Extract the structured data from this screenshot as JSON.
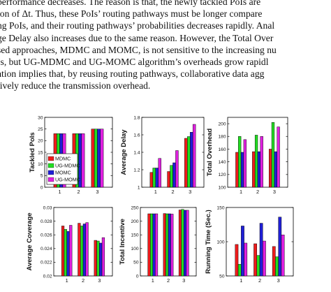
{
  "paragraph": {
    "lines": [
      "performance decreases. The reason is that, the newly tackled PoIs are",
      "ion of Δt. Thus, these PoIs’ routing pathways must be longer compare",
      "ng PoIs, and their routing pathways’ probabilities decreases rapidly. Anal",
      "ge Delay also increases due to the same reason. However, the Total Over",
      "sed approaches, MDMC and MOMC, is not sensitive to the increasing nu",
      "Is, but UG-MDMC and UG-MOMC algorithm’s overheads grow rapidl",
      "ation implies that, by reusing routing pathways, collaborative data agg",
      "tively reduce the transmission overhead."
    ]
  },
  "colors": {
    "MDMC": "#ee1c1c",
    "UG-MDMC": "#22dd22",
    "MOMC": "#1f1fd6",
    "UG-MOMC": "#e020e0"
  },
  "chart_data": [
    {
      "type": "bar",
      "ylabel": "Tackled PoIs",
      "categories": [
        "1",
        "2",
        "3"
      ],
      "ylim": [
        0,
        30
      ],
      "yticks": [
        "0",
        "5",
        "10",
        "15",
        "20",
        "25",
        "30"
      ],
      "legend": [
        "MDMC",
        "UG-MDMC",
        "MOMC",
        "UG-MOMC"
      ],
      "legend_position": "bottom-left",
      "series": [
        {
          "name": "MDMC",
          "values": [
            23,
            23,
            25
          ]
        },
        {
          "name": "UG-MDMC",
          "values": [
            23,
            23,
            25
          ]
        },
        {
          "name": "MOMC",
          "values": [
            23,
            23,
            25
          ]
        },
        {
          "name": "UG-MOMC",
          "values": [
            23,
            23,
            25
          ]
        }
      ]
    },
    {
      "type": "bar",
      "ylabel": "Average Delay",
      "categories": [
        "1",
        "2",
        "3"
      ],
      "ylim": [
        1,
        1.8
      ],
      "yticks": [
        "1",
        "1.2",
        "1.4",
        "1.6",
        "1.8"
      ],
      "series": [
        {
          "name": "MDMC",
          "values": [
            1.17,
            1.18,
            1.56
          ]
        },
        {
          "name": "UG-MDMC",
          "values": [
            1.22,
            1.25,
            1.58
          ]
        },
        {
          "name": "MOMC",
          "values": [
            1.22,
            1.28,
            1.63
          ]
        },
        {
          "name": "UG-MOMC",
          "values": [
            1.33,
            1.42,
            1.72
          ]
        }
      ]
    },
    {
      "type": "bar",
      "ylabel": "Total Overhead",
      "categories": [
        "1",
        "2",
        "3"
      ],
      "ylim": [
        100,
        210
      ],
      "yticks": [
        "100",
        "120",
        "140",
        "160",
        "180",
        "200"
      ],
      "series": [
        {
          "name": "MDMC",
          "values": [
            155,
            156,
            160
          ]
        },
        {
          "name": "UG-MDMC",
          "values": [
            180,
            182,
            202
          ]
        },
        {
          "name": "MOMC",
          "values": [
            155,
            156,
            156
          ]
        },
        {
          "name": "UG-MOMC",
          "values": [
            175,
            180,
            195
          ]
        }
      ]
    },
    {
      "type": "bar",
      "ylabel": "Average Coverage",
      "categories": [
        "1",
        "2",
        "3"
      ],
      "ylim": [
        0.02,
        0.03
      ],
      "yticks": [
        "0.02",
        "0.022",
        "0.024",
        "0.026",
        "0.028",
        "0.03"
      ],
      "series": [
        {
          "name": "MDMC",
          "values": [
            0.0273,
            0.0277,
            0.0252
          ]
        },
        {
          "name": "UG-MDMC",
          "values": [
            0.0268,
            0.0273,
            0.0251
          ]
        },
        {
          "name": "MOMC",
          "values": [
            0.0265,
            0.0276,
            0.0248
          ]
        },
        {
          "name": "UG-MOMC",
          "values": [
            0.0274,
            0.0278,
            0.0256
          ]
        }
      ]
    },
    {
      "type": "bar",
      "ylabel": "Total Incentive",
      "categories": [
        "1",
        "2",
        "3"
      ],
      "ylim": [
        0,
        250
      ],
      "yticks": [
        "0",
        "50",
        "100",
        "150",
        "200",
        "250"
      ],
      "series": [
        {
          "name": "MDMC",
          "values": [
            227,
            228,
            241
          ]
        },
        {
          "name": "UG-MDMC",
          "values": [
            227,
            227,
            243
          ]
        },
        {
          "name": "MOMC",
          "values": [
            227,
            227,
            240
          ]
        },
        {
          "name": "UG-MOMC",
          "values": [
            227,
            226,
            240
          ]
        }
      ]
    },
    {
      "type": "bar",
      "ylabel": "Running Time (Sec.)",
      "categories": [
        "1",
        "2",
        "3"
      ],
      "ylim": [
        50,
        150
      ],
      "yticks": [
        "50",
        "100",
        "150"
      ],
      "series": [
        {
          "name": "MDMC",
          "values": [
            96,
            97,
            93
          ]
        },
        {
          "name": "UG-MDMC",
          "values": [
            67,
            80,
            78
          ]
        },
        {
          "name": "MOMC",
          "values": [
            123,
            127,
            136
          ]
        },
        {
          "name": "UG-MOMC",
          "values": [
            98,
            101,
            110
          ]
        }
      ]
    }
  ]
}
